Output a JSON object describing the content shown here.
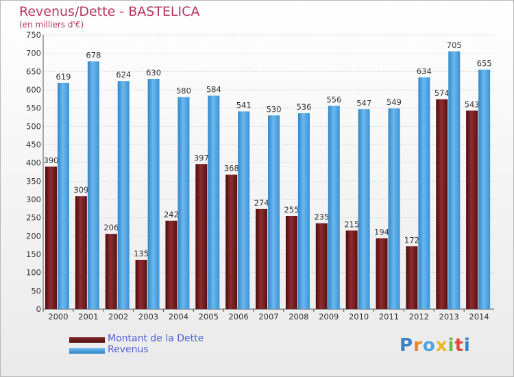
{
  "chart_data": {
    "type": "bar",
    "title": "Revenus/Dette - BASTELICA",
    "subtitle": "(en milliers d'€)",
    "categories": [
      "2000",
      "2001",
      "2002",
      "2003",
      "2004",
      "2005",
      "2006",
      "2007",
      "2008",
      "2009",
      "2010",
      "2011",
      "2012",
      "2013",
      "2014"
    ],
    "series": [
      {
        "name": "Montant de la Dette",
        "color": "#7a1c1f",
        "values": [
          390,
          309,
          206,
          135,
          242,
          397,
          368,
          274,
          255,
          235,
          215,
          194,
          172,
          574,
          543
        ]
      },
      {
        "name": "Revenus",
        "color": "#4aa3e4",
        "values": [
          619,
          678,
          624,
          630,
          580,
          584,
          541,
          530,
          536,
          556,
          547,
          549,
          634,
          705,
          655
        ]
      }
    ],
    "ylim": [
      0,
      750
    ],
    "yticks": [
      0,
      50,
      100,
      150,
      200,
      250,
      300,
      350,
      400,
      450,
      500,
      550,
      600,
      650,
      700,
      750
    ],
    "grid": true,
    "legend_position": "bottom-left"
  },
  "logo": {
    "text": "Proxiti",
    "colors": [
      "#3b82c4",
      "#e8862a",
      "#4aa3e4",
      "#e8b82a",
      "#67b845",
      "#e24a3b",
      "#3b82c4"
    ]
  }
}
